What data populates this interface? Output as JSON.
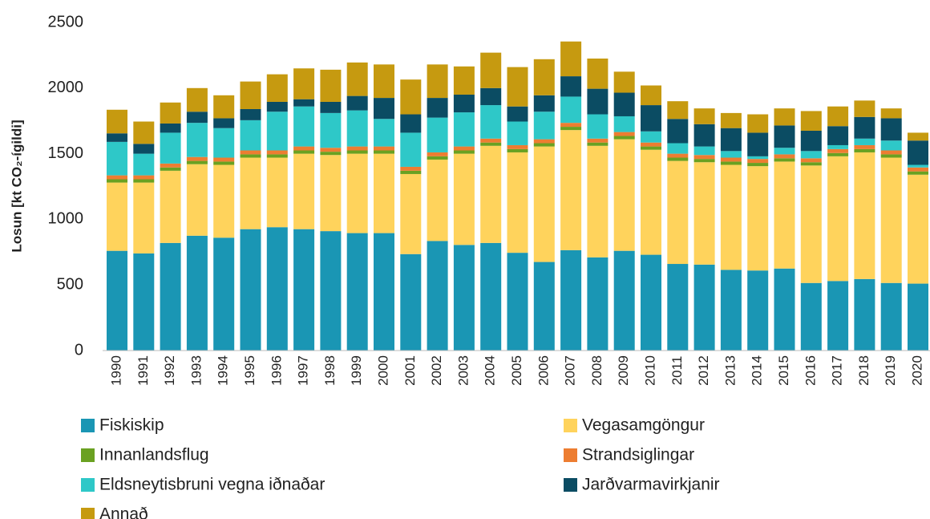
{
  "chart_data": {
    "type": "stacked_bar",
    "y_label": "Losun [kt CO₂-ígildi]",
    "categories": [
      "1990",
      "1991",
      "1992",
      "1993",
      "1994",
      "1995",
      "1996",
      "1997",
      "1998",
      "1999",
      "2000",
      "2001",
      "2002",
      "2003",
      "2004",
      "2005",
      "2006",
      "2007",
      "2008",
      "2009",
      "2010",
      "2011",
      "2012",
      "2013",
      "2014",
      "2015",
      "2016",
      "2017",
      "2018",
      "2019",
      "2020"
    ],
    "series": [
      {
        "name": "Fiskiskip",
        "color": "#1a96b4",
        "values": [
          760,
          740,
          820,
          875,
          860,
          925,
          940,
          925,
          910,
          895,
          895,
          735,
          835,
          805,
          820,
          745,
          675,
          765,
          710,
          760,
          730,
          660,
          655,
          615,
          610,
          625,
          515,
          530,
          545,
          515,
          510
        ]
      },
      {
        "name": "Vegasamgöngur",
        "color": "#ffd35c",
        "values": [
          520,
          540,
          550,
          545,
          555,
          545,
          530,
          575,
          580,
          605,
          605,
          610,
          620,
          695,
          740,
          765,
          880,
          915,
          850,
          850,
          800,
          785,
          780,
          800,
          795,
          815,
          895,
          950,
          965,
          955,
          830
        ]
      },
      {
        "name": "Innanlandsflug",
        "color": "#6aa121",
        "values": [
          25,
          25,
          25,
          25,
          25,
          25,
          25,
          25,
          25,
          25,
          25,
          25,
          25,
          25,
          25,
          25,
          25,
          25,
          25,
          25,
          25,
          25,
          25,
          25,
          25,
          25,
          25,
          25,
          25,
          25,
          25
        ]
      },
      {
        "name": "Strandsiglingar",
        "color": "#ed7d31",
        "values": [
          30,
          30,
          30,
          30,
          30,
          30,
          30,
          30,
          30,
          30,
          30,
          30,
          30,
          30,
          30,
          30,
          30,
          30,
          30,
          30,
          30,
          30,
          30,
          30,
          30,
          30,
          30,
          30,
          30,
          30,
          30
        ]
      },
      {
        "name": "Eldsneytisbruni vegna iðnaðar",
        "color": "#2ec8c8",
        "values": [
          255,
          165,
          235,
          260,
          225,
          230,
          295,
          305,
          265,
          275,
          210,
          260,
          265,
          260,
          255,
          180,
          210,
          200,
          185,
          120,
          85,
          80,
          65,
          50,
          20,
          50,
          55,
          30,
          50,
          75,
          20
        ]
      },
      {
        "name": "Jarðvarmavirkjanir",
        "color": "#0b4c63",
        "values": [
          65,
          75,
          70,
          85,
          75,
          85,
          75,
          55,
          85,
          110,
          160,
          140,
          150,
          135,
          130,
          115,
          125,
          155,
          195,
          180,
          200,
          185,
          170,
          175,
          180,
          170,
          155,
          145,
          165,
          170,
          185
        ]
      },
      {
        "name": "Annað",
        "color": "#c69a10",
        "values": [
          180,
          170,
          160,
          180,
          175,
          210,
          210,
          235,
          245,
          255,
          255,
          265,
          255,
          215,
          270,
          300,
          275,
          265,
          230,
          160,
          150,
          135,
          120,
          115,
          140,
          130,
          150,
          150,
          125,
          75,
          60
        ]
      }
    ],
    "ylim": [
      0,
      2500
    ],
    "yticks": [
      0,
      500,
      1000,
      1500,
      2000,
      2500
    ],
    "grid": false
  }
}
